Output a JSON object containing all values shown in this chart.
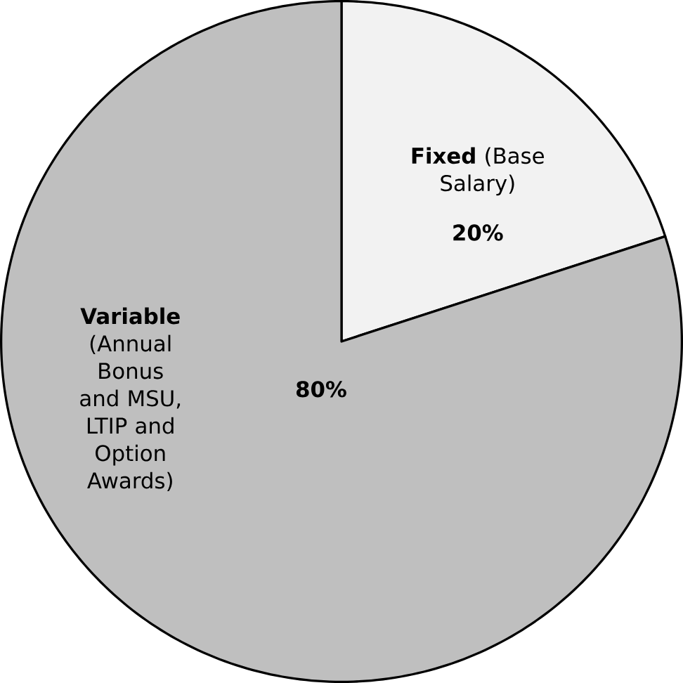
{
  "chart_data": {
    "type": "pie",
    "categories": [
      "**Fixed** (Base Salary)",
      "**Variable** (Annual Bonus and MSU, LTIP and Option Awards)"
    ],
    "values": [
      20,
      80
    ],
    "value_labels": [
      "20%",
      "80%"
    ],
    "colors": [
      "#f2f2f2",
      "#bfbfbf"
    ]
  }
}
